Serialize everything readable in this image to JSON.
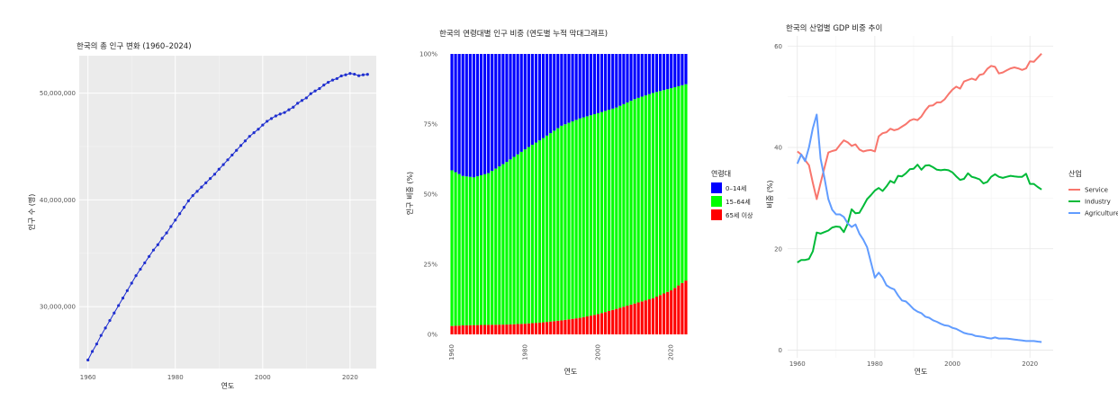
{
  "chart_data": [
    {
      "type": "line",
      "title": "한국의 총 인구 변화 (1960–2024)",
      "xlabel": "연도",
      "ylabel": "인구 수 (명)",
      "xlim": [
        1958,
        2026
      ],
      "ylim": [
        24200000,
        53500000
      ],
      "x_ticks": [
        1960,
        1980,
        2000,
        2020
      ],
      "y_ticks": [
        30000000,
        40000000,
        50000000
      ],
      "y_tick_labels": [
        "30,000,000",
        "40,000,000",
        "50,000,000"
      ],
      "color": "#1f2fcf",
      "x": [
        1960,
        1961,
        1962,
        1963,
        1964,
        1965,
        1966,
        1967,
        1968,
        1969,
        1970,
        1971,
        1972,
        1973,
        1974,
        1975,
        1976,
        1977,
        1978,
        1979,
        1980,
        1981,
        1982,
        1983,
        1984,
        1985,
        1986,
        1987,
        1988,
        1989,
        1990,
        1991,
        1992,
        1993,
        1994,
        1995,
        1996,
        1997,
        1998,
        1999,
        2000,
        2001,
        2002,
        2003,
        2004,
        2005,
        2006,
        2007,
        2008,
        2009,
        2010,
        2011,
        2012,
        2013,
        2014,
        2015,
        2016,
        2017,
        2018,
        2019,
        2020,
        2021,
        2022,
        2023,
        2024
      ],
      "y": [
        25000000,
        25800000,
        26500000,
        27300000,
        28000000,
        28700000,
        29400000,
        30100000,
        30800000,
        31500000,
        32200000,
        32900000,
        33500000,
        34100000,
        34700000,
        35300000,
        35800000,
        36400000,
        36900000,
        37500000,
        38100000,
        38700000,
        39300000,
        39900000,
        40400000,
        40800000,
        41200000,
        41600000,
        42000000,
        42400000,
        42870000,
        43300000,
        43750000,
        44200000,
        44640000,
        45090000,
        45520000,
        45950000,
        46290000,
        46620000,
        47010000,
        47360000,
        47620000,
        47860000,
        48040000,
        48180000,
        48440000,
        48680000,
        49050000,
        49310000,
        49550000,
        49940000,
        50200000,
        50430000,
        50750000,
        51010000,
        51220000,
        51360000,
        51610000,
        51710000,
        51840000,
        51770000,
        51630000,
        51710000,
        51750000
      ]
    },
    {
      "type": "bar",
      "stacked": "percent",
      "title": "한국의 연령대별 인구 비중 (연도별 누적 막대그래프)",
      "xlabel": "연도",
      "ylabel": "인구 비중 (%)",
      "ylim": [
        0,
        100
      ],
      "x_ticks": [
        1960,
        1980,
        2000,
        2020
      ],
      "y_ticks": [
        0,
        25,
        50,
        75,
        100
      ],
      "y_tick_labels": [
        "0%",
        "25%",
        "50%",
        "75%",
        "100%"
      ],
      "legend_title": "연령대",
      "legend_position": "right",
      "series": [
        {
          "name": "0–14세",
          "color": "#0000ff"
        },
        {
          "name": "15–64세",
          "color": "#00ff00"
        },
        {
          "name": "65세 이상",
          "color": "#ff0000"
        }
      ],
      "anchors": {
        "years": [
          1960,
          1963,
          1966,
          1970,
          1975,
          1980,
          1985,
          1990,
          1995,
          2000,
          2005,
          2010,
          2015,
          2020,
          2024
        ],
        "age_65_plus": [
          3.0,
          3.2,
          3.3,
          3.4,
          3.5,
          3.8,
          4.3,
          5.0,
          5.9,
          7.2,
          9.1,
          11.0,
          12.9,
          15.7,
          19.2
        ],
        "age_0_14": [
          41.5,
          43.5,
          44.0,
          42.5,
          38.5,
          34.0,
          30.0,
          25.6,
          23.0,
          21.1,
          19.1,
          16.1,
          13.9,
          12.2,
          10.8
        ]
      }
    },
    {
      "type": "line",
      "title": "한국의 산업별 GDP 비중 추이",
      "xlabel": "연도",
      "ylabel": "비중 (%)",
      "xlim": [
        1957.5,
        2026
      ],
      "ylim": [
        -1.5,
        62
      ],
      "x_ticks": [
        1960,
        1980,
        2000,
        2020
      ],
      "y_ticks": [
        0,
        20,
        40,
        60
      ],
      "legend_title": "산업",
      "legend_position": "right",
      "series": [
        {
          "name": "Service",
          "color": "#f8766d",
          "x": [
            1960,
            1961,
            1962,
            1963,
            1964,
            1965,
            1966,
            1967,
            1968,
            1969,
            1970,
            1971,
            1972,
            1973,
            1974,
            1975,
            1976,
            1977,
            1978,
            1979,
            1980,
            1981,
            1982,
            1983,
            1984,
            1985,
            1986,
            1987,
            1988,
            1989,
            1990,
            1991,
            1992,
            1993,
            1994,
            1995,
            1996,
            1997,
            1998,
            1999,
            2000,
            2001,
            2002,
            2003,
            2004,
            2005,
            2006,
            2007,
            2008,
            2009,
            2010,
            2011,
            2012,
            2013,
            2014,
            2015,
            2016,
            2017,
            2018,
            2019,
            2020,
            2021,
            2022,
            2023
          ],
          "y": [
            39.2,
            38.6,
            37.5,
            36.5,
            33.0,
            29.8,
            33.0,
            36.0,
            39.0,
            39.3,
            39.5,
            40.5,
            41.4,
            41.0,
            40.3,
            40.6,
            39.6,
            39.2,
            39.4,
            39.5,
            39.2,
            42.2,
            42.8,
            43.0,
            43.7,
            43.4,
            43.6,
            44.1,
            44.6,
            45.3,
            45.6,
            45.4,
            46.1,
            47.3,
            48.2,
            48.3,
            48.9,
            48.9,
            49.5,
            50.5,
            51.4,
            52.0,
            51.6,
            53.0,
            53.3,
            53.6,
            53.3,
            54.3,
            54.5,
            55.5,
            56.1,
            55.9,
            54.6,
            54.8,
            55.2,
            55.6,
            55.8,
            55.6,
            55.3,
            55.6,
            57.0,
            56.9,
            57.7,
            58.5
          ]
        },
        {
          "name": "Industry",
          "color": "#00ba38",
          "x": [
            1960,
            1961,
            1962,
            1963,
            1964,
            1965,
            1966,
            1967,
            1968,
            1969,
            1970,
            1971,
            1972,
            1973,
            1974,
            1975,
            1976,
            1977,
            1978,
            1979,
            1980,
            1981,
            1982,
            1983,
            1984,
            1985,
            1986,
            1987,
            1988,
            1989,
            1990,
            1991,
            1992,
            1993,
            1994,
            1995,
            1996,
            1997,
            1998,
            1999,
            2000,
            2001,
            2002,
            2003,
            2004,
            2005,
            2006,
            2007,
            2008,
            2009,
            2010,
            2011,
            2012,
            2013,
            2014,
            2015,
            2016,
            2017,
            2018,
            2019,
            2020,
            2021,
            2022,
            2023
          ],
          "y": [
            17.3,
            17.8,
            17.8,
            18.0,
            19.5,
            23.2,
            23.0,
            23.3,
            23.6,
            24.2,
            24.4,
            24.3,
            23.3,
            25.0,
            27.8,
            27.0,
            27.1,
            28.4,
            29.8,
            30.6,
            31.5,
            32.0,
            31.4,
            32.3,
            33.4,
            33.0,
            34.4,
            34.3,
            34.9,
            35.7,
            35.8,
            36.6,
            35.6,
            36.4,
            36.5,
            36.1,
            35.6,
            35.5,
            35.6,
            35.5,
            35.1,
            34.3,
            33.6,
            33.8,
            34.9,
            34.2,
            34.0,
            33.7,
            32.9,
            33.2,
            34.2,
            34.7,
            34.2,
            34.0,
            34.2,
            34.4,
            34.3,
            34.2,
            34.2,
            34.8,
            32.8,
            32.8,
            32.2,
            31.7
          ]
        },
        {
          "name": "Agriculture",
          "color": "#619cff",
          "x": [
            1960,
            1961,
            1962,
            1963,
            1964,
            1965,
            1966,
            1967,
            1968,
            1969,
            1970,
            1971,
            1972,
            1973,
            1974,
            1975,
            1976,
            1977,
            1978,
            1979,
            1980,
            1981,
            1982,
            1983,
            1984,
            1985,
            1986,
            1987,
            1988,
            1989,
            1990,
            1991,
            1992,
            1993,
            1994,
            1995,
            1996,
            1997,
            1998,
            1999,
            2000,
            2001,
            2002,
            2003,
            2004,
            2005,
            2006,
            2007,
            2008,
            2009,
            2010,
            2011,
            2012,
            2013,
            2014,
            2015,
            2016,
            2017,
            2018,
            2019,
            2020,
            2021,
            2022,
            2023
          ],
          "y": [
            36.8,
            38.6,
            37.3,
            40.0,
            43.8,
            46.5,
            37.8,
            34.0,
            29.8,
            27.7,
            26.8,
            26.8,
            26.3,
            25.0,
            24.3,
            24.8,
            23.0,
            21.8,
            20.3,
            17.3,
            14.3,
            15.3,
            14.3,
            12.8,
            12.3,
            12.0,
            10.8,
            9.8,
            9.6,
            8.9,
            8.1,
            7.6,
            7.3,
            6.6,
            6.4,
            5.9,
            5.6,
            5.2,
            4.9,
            4.8,
            4.4,
            4.2,
            3.8,
            3.4,
            3.2,
            3.1,
            2.8,
            2.7,
            2.6,
            2.4,
            2.3,
            2.5,
            2.3,
            2.3,
            2.3,
            2.2,
            2.1,
            2.0,
            1.9,
            1.8,
            1.8,
            1.8,
            1.7,
            1.6
          ]
        }
      ]
    }
  ]
}
